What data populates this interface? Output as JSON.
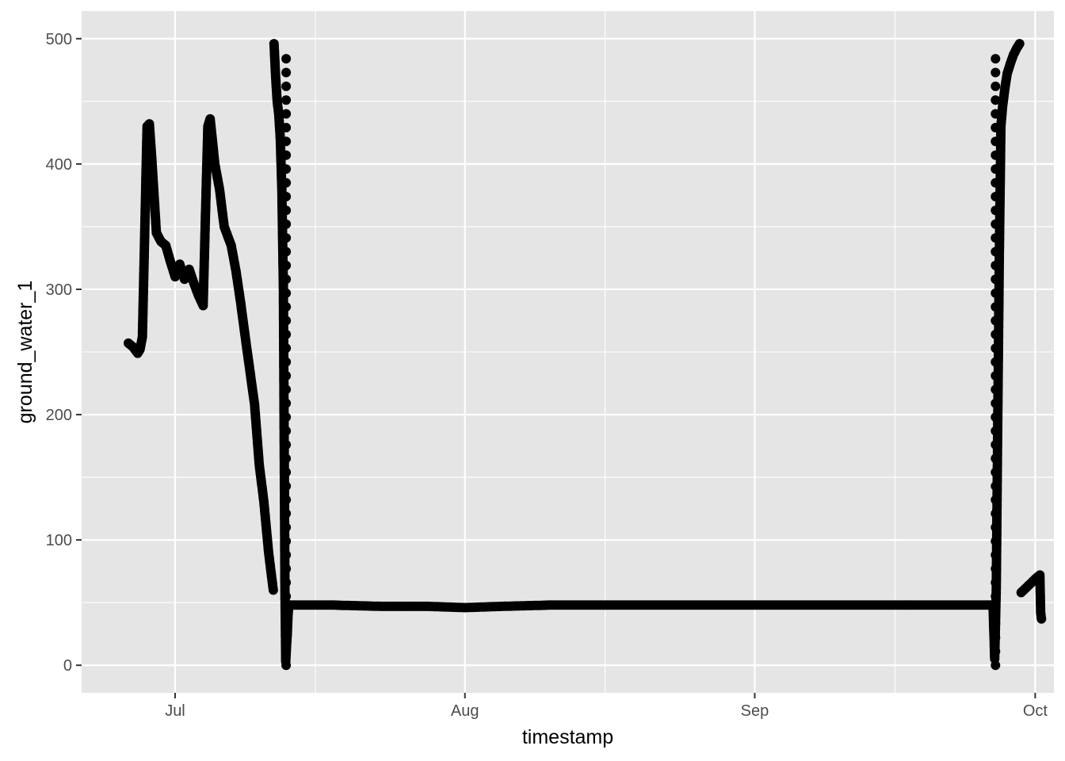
{
  "chart_data": {
    "type": "scatter",
    "title": "",
    "xlabel": "timestamp",
    "ylabel": "ground_water_1",
    "x_axis": {
      "type": "date",
      "range": [
        "2021-06-21",
        "2021-10-03"
      ],
      "ticks": [
        {
          "date": "2021-07-01",
          "label": "Jul"
        },
        {
          "date": "2021-08-01",
          "label": "Aug"
        },
        {
          "date": "2021-09-01",
          "label": "Sep"
        },
        {
          "date": "2021-10-01",
          "label": "Oct"
        }
      ],
      "minor_ticks": [
        "2021-07-16",
        "2021-08-16",
        "2021-09-16"
      ]
    },
    "y_axis": {
      "range": [
        -22,
        522
      ],
      "ticks": [
        0,
        100,
        200,
        300,
        400,
        500
      ],
      "tick_labels": [
        "0",
        "100",
        "200",
        "300",
        "400",
        "500"
      ],
      "minor_ticks": [
        50,
        150,
        250,
        350,
        450
      ]
    },
    "grid": true,
    "legend": "none",
    "colors": {
      "panel_background": "#e5e5e5",
      "grid": "#ffffff",
      "points": "#000000",
      "tick_label": "#4d4d4d"
    },
    "series": [
      {
        "points": [
          [
            "2021-06-26T00:00",
            257
          ],
          [
            "2021-06-26T12:00",
            254
          ],
          [
            "2021-06-27T00:00",
            249
          ],
          [
            "2021-06-27T06:00",
            252
          ],
          [
            "2021-06-27T12:00",
            262
          ],
          [
            "2021-06-27T18:00",
            345
          ],
          [
            "2021-06-28T00:00",
            430
          ],
          [
            "2021-06-28T06:00",
            432
          ],
          [
            "2021-06-28T12:00",
            405
          ],
          [
            "2021-06-29T00:00",
            345
          ],
          [
            "2021-06-29T12:00",
            338
          ],
          [
            "2021-06-30T00:00",
            335
          ],
          [
            "2021-06-30T12:00",
            322
          ],
          [
            "2021-07-01T00:00",
            310
          ],
          [
            "2021-07-01T12:00",
            320
          ],
          [
            "2021-07-02T00:00",
            308
          ],
          [
            "2021-07-02T12:00",
            316
          ],
          [
            "2021-07-03T00:00",
            305
          ],
          [
            "2021-07-03T12:00",
            295
          ],
          [
            "2021-07-04T00:00",
            287
          ],
          [
            "2021-07-04T06:00",
            360
          ],
          [
            "2021-07-04T12:00",
            430
          ],
          [
            "2021-07-04T18:00",
            436
          ],
          [
            "2021-07-05T06:00",
            400
          ],
          [
            "2021-07-05T18:00",
            380
          ],
          [
            "2021-07-06T06:00",
            350
          ],
          [
            "2021-07-07T00:00",
            335
          ],
          [
            "2021-07-07T12:00",
            315
          ],
          [
            "2021-07-08T00:00",
            290
          ],
          [
            "2021-07-08T12:00",
            262
          ],
          [
            "2021-07-09T00:00",
            235
          ],
          [
            "2021-07-09T12:00",
            208
          ],
          [
            "2021-07-10T00:00",
            160
          ],
          [
            "2021-07-10T12:00",
            130
          ],
          [
            "2021-07-11T00:00",
            90
          ],
          [
            "2021-07-11T12:00",
            60
          ]
        ]
      },
      {
        "points": [
          [
            "2021-07-11T14:00",
            496
          ],
          [
            "2021-07-11T18:00",
            470
          ],
          [
            "2021-07-11T22:00",
            450
          ],
          [
            "2021-07-12T02:00",
            440
          ],
          [
            "2021-07-12T06:00",
            420
          ],
          [
            "2021-07-12T10:00",
            380
          ],
          [
            "2021-07-12T14:00",
            300
          ],
          [
            "2021-07-12T16:00",
            180
          ],
          [
            "2021-07-12T18:00",
            60
          ],
          [
            "2021-07-12T20:00",
            3
          ],
          [
            "2021-07-12T22:00",
            15
          ],
          [
            "2021-07-13T00:00",
            25
          ],
          [
            "2021-07-13T02:00",
            40
          ],
          [
            "2021-07-13T04:00",
            48
          ]
        ]
      },
      {
        "points": [
          [
            "2021-07-13T06:00",
            48
          ],
          [
            "2021-07-18T00:00",
            48
          ],
          [
            "2021-07-23T00:00",
            47
          ],
          [
            "2021-07-28T00:00",
            47
          ],
          [
            "2021-08-01T00:00",
            46
          ],
          [
            "2021-08-05T00:00",
            47
          ],
          [
            "2021-08-10T00:00",
            48
          ],
          [
            "2021-08-15T00:00",
            48
          ],
          [
            "2021-08-20T00:00",
            48
          ],
          [
            "2021-08-25T00:00",
            48
          ],
          [
            "2021-08-30T00:00",
            48
          ],
          [
            "2021-09-04T00:00",
            48
          ],
          [
            "2021-09-09T00:00",
            48
          ],
          [
            "2021-09-14T00:00",
            48
          ],
          [
            "2021-09-19T00:00",
            48
          ],
          [
            "2021-09-24T00:00",
            48
          ],
          [
            "2021-09-26T12:00",
            48
          ]
        ]
      },
      {
        "points": [
          [
            "2021-09-26T12:00",
            45
          ],
          [
            "2021-09-26T16:00",
            5
          ],
          [
            "2021-09-26T20:00",
            60
          ],
          [
            "2021-09-27T00:00",
            200
          ],
          [
            "2021-09-27T04:00",
            330
          ],
          [
            "2021-09-27T08:00",
            430
          ],
          [
            "2021-09-27T12:00",
            445
          ],
          [
            "2021-09-27T18:00",
            460
          ],
          [
            "2021-09-28T00:00",
            472
          ],
          [
            "2021-09-28T08:00",
            480
          ],
          [
            "2021-09-28T16:00",
            487
          ],
          [
            "2021-09-29T00:00",
            492
          ],
          [
            "2021-09-29T08:00",
            496
          ]
        ]
      },
      {
        "points": [
          [
            "2021-09-29T12:00",
            58
          ],
          [
            "2021-09-29T22:00",
            61
          ],
          [
            "2021-09-30T08:00",
            64
          ],
          [
            "2021-09-30T18:00",
            67
          ],
          [
            "2021-10-01T04:00",
            70
          ],
          [
            "2021-10-01T12:00",
            72
          ],
          [
            "2021-10-01T14:00",
            42
          ],
          [
            "2021-10-01T16:00",
            37
          ]
        ]
      }
    ],
    "dotted_columns": [
      {
        "x": "2021-07-12T21:00",
        "y_from": 0,
        "y_to": 487,
        "spacing": 11
      },
      {
        "x": "2021-09-26T18:00",
        "y_from": 0,
        "y_to": 487,
        "spacing": 11
      }
    ]
  }
}
